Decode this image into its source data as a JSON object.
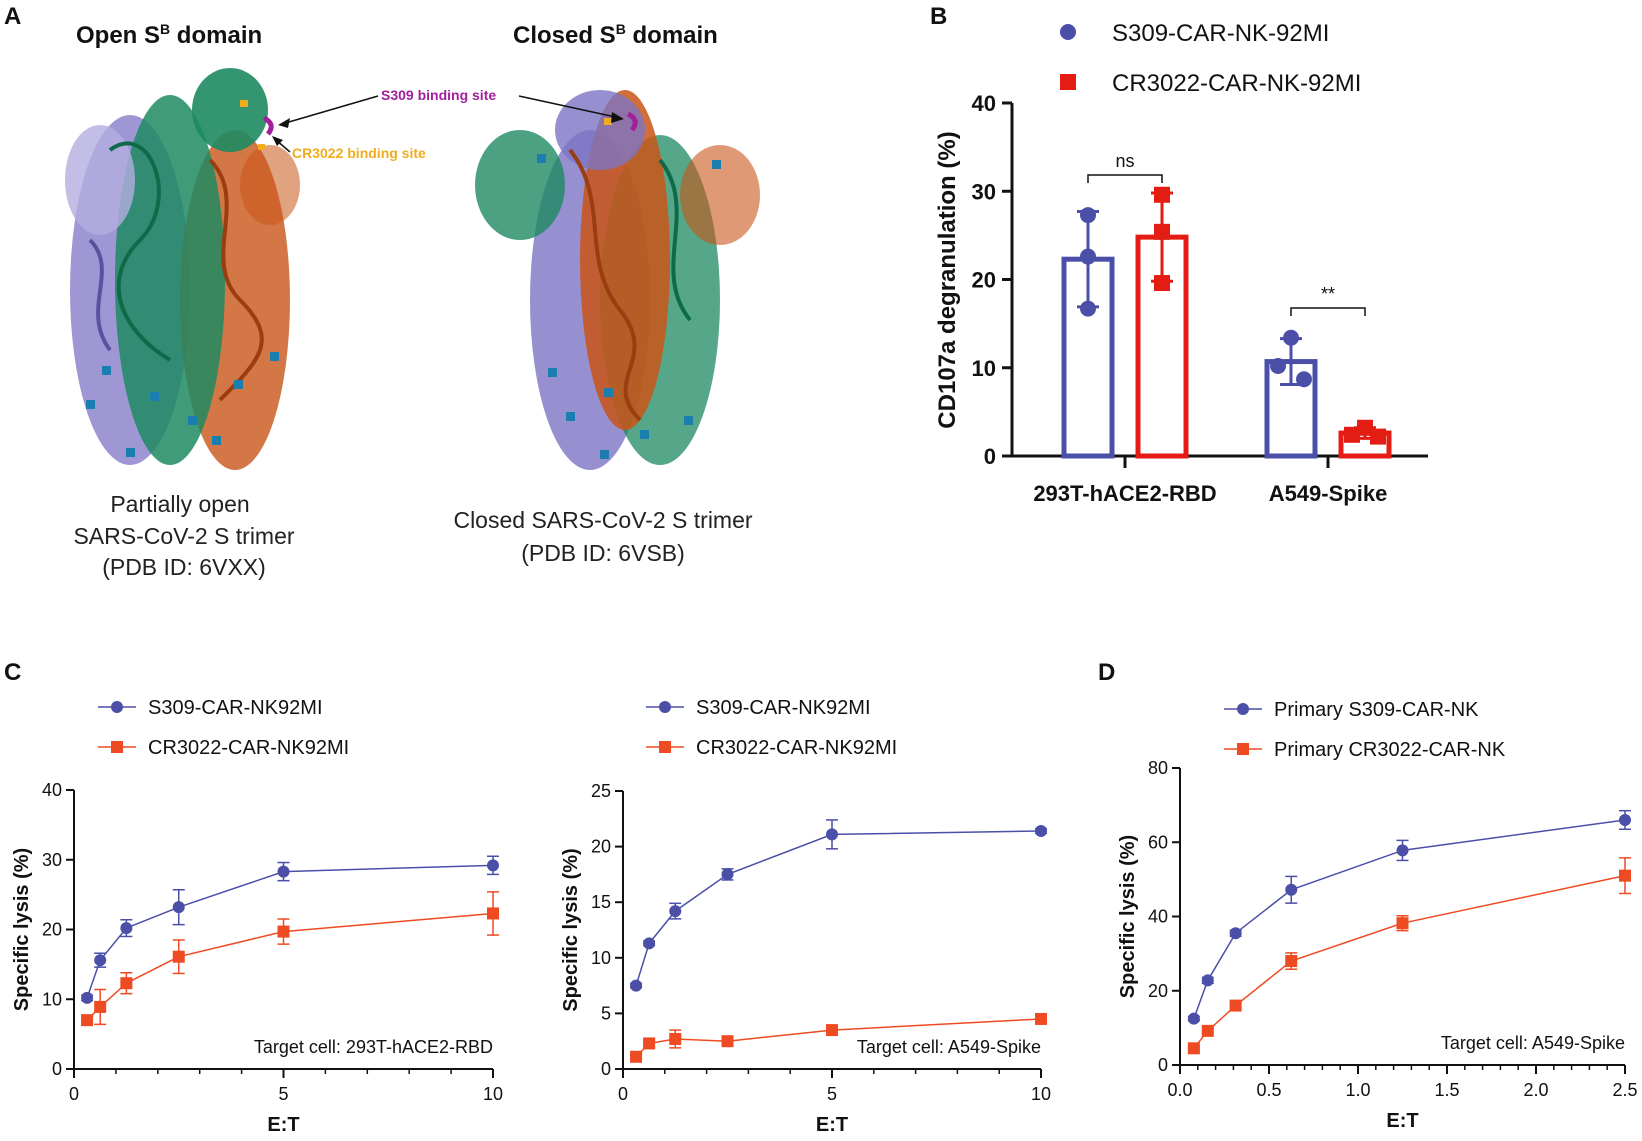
{
  "colors": {
    "blue": "#4b4fa8",
    "red": "#e41d14",
    "orange": "#ef4b22",
    "purple": "#a21f9c",
    "amber": "#f0ac1c",
    "green": "#1e8a62",
    "rust": "#c95518",
    "lavender": "#7d74c4"
  },
  "panel_a": {
    "label": "A",
    "left": {
      "title_main": "Open S",
      "title_sup": "B",
      "title_tail": " domain",
      "caption": [
        "Partially open",
        "SARS-CoV-2 S trimer",
        "(PDB ID: 6VXX)"
      ]
    },
    "right": {
      "title_main": "Closed S",
      "title_sup": "B",
      "title_tail": " domain",
      "caption": [
        "Closed SARS-CoV-2 S trimer",
        "(PDB ID: 6VSB)"
      ]
    },
    "annotations": {
      "s309": "S309 binding site",
      "cr3022": "CR3022 binding site"
    }
  },
  "panel_labels": {
    "b": "B",
    "c": "C",
    "d": "D"
  },
  "chart_data": [
    {
      "id": "B",
      "type": "bar",
      "categories": [
        "293T-hACE2-RBD",
        "A549-Spike"
      ],
      "series": [
        {
          "name": "S309-CAR-NK-92MI",
          "values": [
            22.3,
            10.7
          ],
          "sd": [
            5.4,
            2.6
          ],
          "points": [
            [
              27.3,
              22.6,
              16.7
            ],
            [
              13.4,
              10.2,
              8.7
            ]
          ]
        },
        {
          "name": "CR3022-CAR-NK-92MI",
          "values": [
            24.8,
            2.6
          ],
          "sd": [
            5.0,
            0.6
          ],
          "points": [
            [
              29.6,
              25.4,
              19.6
            ],
            [
              3.2,
              2.4,
              2.2
            ]
          ]
        }
      ],
      "significance": [
        {
          "category": "293T-hACE2-RBD",
          "label": "ns"
        },
        {
          "category": "A549-Spike",
          "label": "**"
        }
      ],
      "xlabel": "",
      "ylabel": "CD107a degranulation (%)",
      "ylim": [
        0,
        40
      ],
      "yticks": [
        0,
        10,
        20,
        30,
        40
      ]
    },
    {
      "id": "C-left",
      "type": "line",
      "x": [
        0.3125,
        0.625,
        1.25,
        2.5,
        5,
        10
      ],
      "series": [
        {
          "name": "S309-CAR-NK92MI",
          "values": [
            10.2,
            15.6,
            20.2,
            23.2,
            28.3,
            29.2
          ],
          "err": [
            0.4,
            1.0,
            1.2,
            2.5,
            1.3,
            1.3
          ]
        },
        {
          "name": "CR3022-CAR-NK92MI",
          "values": [
            7.0,
            8.9,
            12.3,
            16.1,
            19.7,
            22.3
          ],
          "err": [
            0.4,
            2.5,
            1.5,
            2.4,
            1.8,
            3.1
          ]
        }
      ],
      "note": "Target cell: 293T-hACE2-RBD",
      "xlabel": "E:T",
      "ylabel": "Specific lysis (%)",
      "xlim": [
        0,
        10
      ],
      "xticks": [
        0,
        5,
        10
      ],
      "ylim": [
        0,
        40
      ],
      "yticks": [
        0,
        10,
        20,
        30,
        40
      ]
    },
    {
      "id": "C-right",
      "type": "line",
      "x": [
        0.3125,
        0.625,
        1.25,
        2.5,
        5,
        10
      ],
      "series": [
        {
          "name": "S309-CAR-NK92MI",
          "values": [
            7.5,
            11.3,
            14.2,
            17.5,
            21.1,
            21.4
          ],
          "err": [
            0.2,
            0.2,
            0.7,
            0.5,
            1.3,
            0.2
          ]
        },
        {
          "name": "CR3022-CAR-NK92MI",
          "values": [
            1.1,
            2.3,
            2.7,
            2.5,
            3.5,
            4.5
          ],
          "err": [
            0.2,
            0.3,
            0.8,
            0.2,
            0.2,
            0.2
          ]
        }
      ],
      "note": "Target cell: A549-Spike",
      "xlabel": "E:T",
      "ylabel": "Specific lysis (%)",
      "xlim": [
        0,
        10
      ],
      "xticks": [
        0,
        5,
        10
      ],
      "ylim": [
        0,
        25
      ],
      "yticks": [
        0,
        5,
        10,
        15,
        20,
        25
      ]
    },
    {
      "id": "D",
      "type": "line",
      "x": [
        0.078,
        0.156,
        0.3125,
        0.625,
        1.25,
        2.5
      ],
      "series": [
        {
          "name": "Primary S309-CAR-NK",
          "values": [
            12.5,
            22.8,
            35.5,
            47.2,
            57.8,
            66.0
          ],
          "err": [
            0.6,
            0.8,
            0.8,
            3.6,
            2.7,
            2.5
          ]
        },
        {
          "name": "Primary CR3022-CAR-NK",
          "values": [
            4.5,
            9.2,
            16.0,
            28.0,
            38.2,
            51.0
          ],
          "err": [
            0.5,
            0.6,
            0.8,
            2.2,
            2.0,
            4.8
          ]
        }
      ],
      "note": "Target cell: A549-Spike",
      "xlabel": "E:T",
      "ylabel": "Specific lysis (%)",
      "xlim": [
        0,
        2.5
      ],
      "xticks": [
        0.0,
        0.5,
        1.0,
        1.5,
        2.0,
        2.5
      ],
      "ylim": [
        0,
        80
      ],
      "yticks": [
        0,
        20,
        40,
        60,
        80
      ]
    }
  ]
}
